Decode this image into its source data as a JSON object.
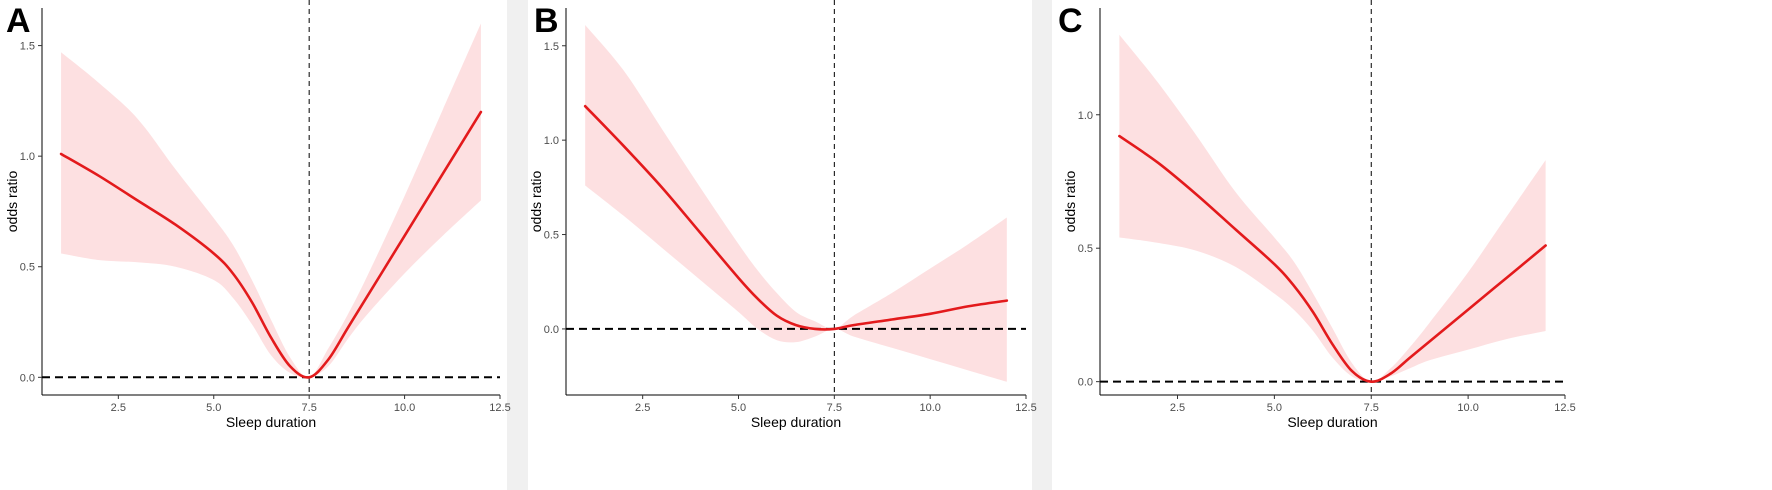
{
  "chart_data": [
    {
      "type": "line",
      "panel_label": "A",
      "xlabel": "Sleep duration",
      "ylabel": "odds ratio",
      "xlim": [
        0.5,
        12.5
      ],
      "ylim": [
        -0.08,
        1.67
      ],
      "x_ticks": [
        2.5,
        5.0,
        7.5,
        10.0,
        12.5
      ],
      "x_tick_labels": [
        "2.5",
        "5.0",
        "7.5",
        "10.0",
        "12.5"
      ],
      "y_ticks": [
        0.0,
        0.5,
        1.0,
        1.5
      ],
      "y_tick_labels": [
        "0.0",
        "0.5",
        "1.0",
        "1.5"
      ],
      "reference_x": 7.5,
      "reference_y": 0.0,
      "colors": {
        "line": "#e31a1c",
        "band": "#fde0e1",
        "reference": "#000000"
      },
      "series": [
        {
          "x": [
            1,
            2,
            3,
            4,
            5,
            5.5,
            6,
            6.5,
            7,
            7.5,
            8,
            8.5,
            9,
            10,
            11,
            12
          ],
          "y": [
            1.01,
            0.91,
            0.8,
            0.69,
            0.56,
            0.47,
            0.34,
            0.18,
            0.05,
            0.0,
            0.08,
            0.22,
            0.36,
            0.64,
            0.92,
            1.2
          ],
          "lower": [
            0.56,
            0.53,
            0.52,
            0.5,
            0.44,
            0.36,
            0.24,
            0.1,
            0.02,
            0.0,
            0.05,
            0.17,
            0.28,
            0.47,
            0.64,
            0.8
          ],
          "upper": [
            1.47,
            1.33,
            1.17,
            0.94,
            0.72,
            0.6,
            0.44,
            0.26,
            0.09,
            0.0,
            0.13,
            0.28,
            0.45,
            0.82,
            1.21,
            1.6
          ]
        }
      ]
    },
    {
      "type": "line",
      "panel_label": "B",
      "xlabel": "Sleep duration",
      "ylabel": "odds ratio",
      "xlim": [
        0.5,
        12.5
      ],
      "ylim": [
        -0.35,
        1.7
      ],
      "x_ticks": [
        2.5,
        5.0,
        7.5,
        10.0,
        12.5
      ],
      "x_tick_labels": [
        "2.5",
        "5.0",
        "7.5",
        "10.0",
        "12.5"
      ],
      "y_ticks": [
        0.0,
        0.5,
        1.0,
        1.5
      ],
      "y_tick_labels": [
        "0.0",
        "0.5",
        "1.0",
        "1.5"
      ],
      "reference_x": 7.5,
      "reference_y": 0.0,
      "colors": {
        "line": "#e31a1c",
        "band": "#fde0e1",
        "reference": "#000000"
      },
      "series": [
        {
          "x": [
            1,
            2,
            3,
            4,
            5,
            5.5,
            6,
            6.5,
            7,
            7.5,
            8,
            9,
            10,
            11,
            12
          ],
          "y": [
            1.18,
            0.97,
            0.75,
            0.51,
            0.27,
            0.16,
            0.07,
            0.02,
            0.0,
            0.0,
            0.02,
            0.05,
            0.08,
            0.12,
            0.15
          ],
          "lower": [
            0.76,
            0.6,
            0.43,
            0.26,
            0.09,
            0.0,
            -0.06,
            -0.07,
            -0.04,
            0.0,
            -0.04,
            -0.1,
            -0.16,
            -0.22,
            -0.28
          ],
          "upper": [
            1.61,
            1.37,
            1.06,
            0.75,
            0.45,
            0.31,
            0.19,
            0.09,
            0.04,
            0.0,
            0.07,
            0.19,
            0.32,
            0.45,
            0.59
          ]
        }
      ]
    },
    {
      "type": "line",
      "panel_label": "C",
      "xlabel": "Sleep duration",
      "ylabel": "odds ratio",
      "xlim": [
        0.5,
        12.5
      ],
      "ylim": [
        -0.05,
        1.4
      ],
      "x_ticks": [
        2.5,
        5.0,
        7.5,
        10.0,
        12.5
      ],
      "x_tick_labels": [
        "2.5",
        "5.0",
        "7.5",
        "10.0",
        "12.5"
      ],
      "y_ticks": [
        0.0,
        0.5,
        1.0
      ],
      "y_tick_labels": [
        "0.0",
        "0.5",
        "1.0"
      ],
      "reference_x": 7.5,
      "reference_y": 0.0,
      "colors": {
        "line": "#e31a1c",
        "band": "#fde0e1",
        "reference": "#000000"
      },
      "series": [
        {
          "x": [
            1,
            2,
            3,
            4,
            5,
            5.5,
            6,
            6.5,
            7,
            7.5,
            8,
            8.5,
            9,
            10,
            11,
            12
          ],
          "y": [
            0.92,
            0.82,
            0.7,
            0.57,
            0.44,
            0.36,
            0.26,
            0.14,
            0.04,
            0.0,
            0.03,
            0.09,
            0.15,
            0.27,
            0.39,
            0.51
          ],
          "lower": [
            0.54,
            0.52,
            0.49,
            0.43,
            0.33,
            0.27,
            0.19,
            0.09,
            0.02,
            0.0,
            0.02,
            0.05,
            0.08,
            0.12,
            0.16,
            0.19
          ],
          "upper": [
            1.3,
            1.12,
            0.92,
            0.71,
            0.54,
            0.45,
            0.33,
            0.2,
            0.07,
            0.0,
            0.05,
            0.13,
            0.22,
            0.41,
            0.62,
            0.83
          ]
        }
      ]
    }
  ]
}
